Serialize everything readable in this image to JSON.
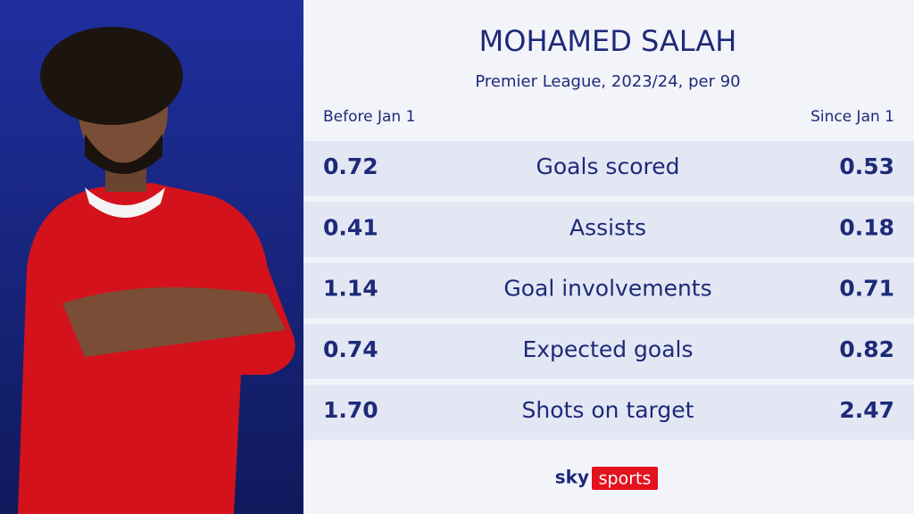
{
  "header": {
    "title": "MOHAMED SALAH",
    "subtitle": "Premier League, 2023/24, per 90",
    "left_column": "Before Jan 1",
    "right_column": "Since Jan 1"
  },
  "table": {
    "rows": [
      [
        "0.72",
        "Goals scored",
        "0.53"
      ],
      [
        "0.41",
        "Assists",
        "0.18"
      ],
      [
        "1.14",
        "Goal involvements",
        "0.71"
      ],
      [
        "0.74",
        "Expected goals",
        "0.82"
      ],
      [
        "1.70",
        "Shots on target",
        "2.47"
      ]
    ]
  },
  "logo": {
    "brand": "sky",
    "product": "sports"
  }
}
